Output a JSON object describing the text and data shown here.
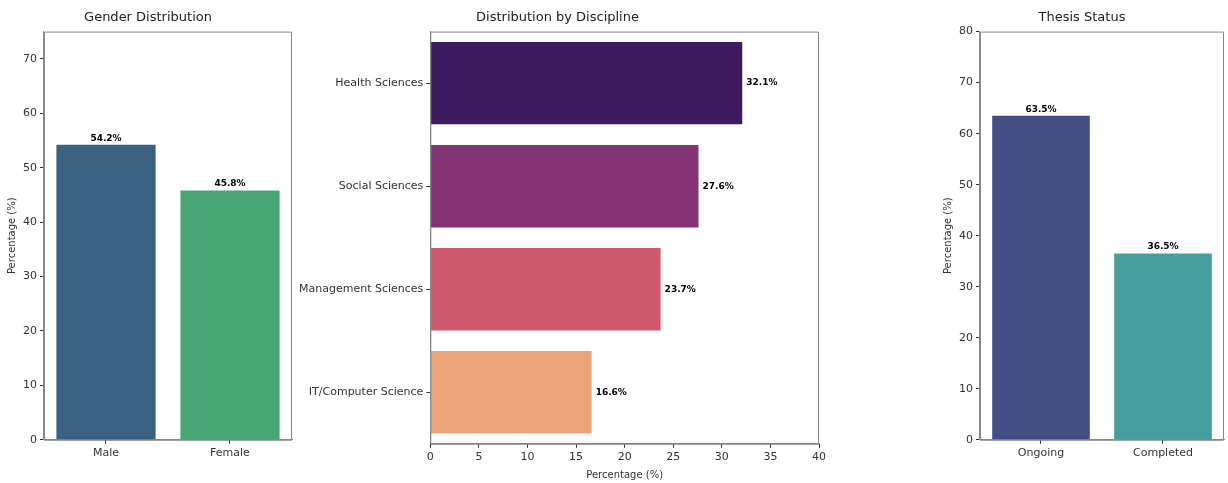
{
  "chart_data": [
    {
      "type": "bar",
      "title": "Gender Distribution",
      "categories": [
        "Male",
        "Female"
      ],
      "values": [
        54.2,
        45.8
      ],
      "colors": [
        "#3b6180",
        "#46a673"
      ],
      "value_labels": [
        "54.2%",
        "45.8%"
      ],
      "ylabel": "Percentage (%)",
      "ylim": [
        0,
        75
      ],
      "yticks": [
        0,
        10,
        20,
        30,
        40,
        50,
        60,
        70
      ],
      "grid": false
    },
    {
      "type": "bar",
      "orientation": "horizontal",
      "title": "Distribution by Discipline",
      "categories": [
        "Health Sciences",
        "Social Sciences",
        "Management Sciences",
        "IT/Computer Science"
      ],
      "values": [
        32.1,
        27.6,
        23.7,
        16.6
      ],
      "colors": [
        "#3d1a5f",
        "#833374",
        "#cf5a70",
        "#eda379"
      ],
      "value_labels": [
        "32.1%",
        "27.6%",
        "23.7%",
        "16.6%"
      ],
      "xlabel": "Percentage (%)",
      "xlim": [
        0,
        40
      ],
      "xticks": [
        0,
        5,
        10,
        15,
        20,
        25,
        30,
        35,
        40
      ],
      "grid": false
    },
    {
      "type": "bar",
      "title": "Thesis Status",
      "categories": [
        "Ongoing",
        "Completed"
      ],
      "values": [
        63.5,
        36.5
      ],
      "colors": [
        "#434f84",
        "#459d9d"
      ],
      "value_labels": [
        "63.5%",
        "36.5%"
      ],
      "ylabel": "Percentage (%)",
      "ylim": [
        0,
        80
      ],
      "yticks": [
        0,
        10,
        20,
        30,
        40,
        50,
        60,
        70,
        80
      ],
      "grid": false
    }
  ]
}
